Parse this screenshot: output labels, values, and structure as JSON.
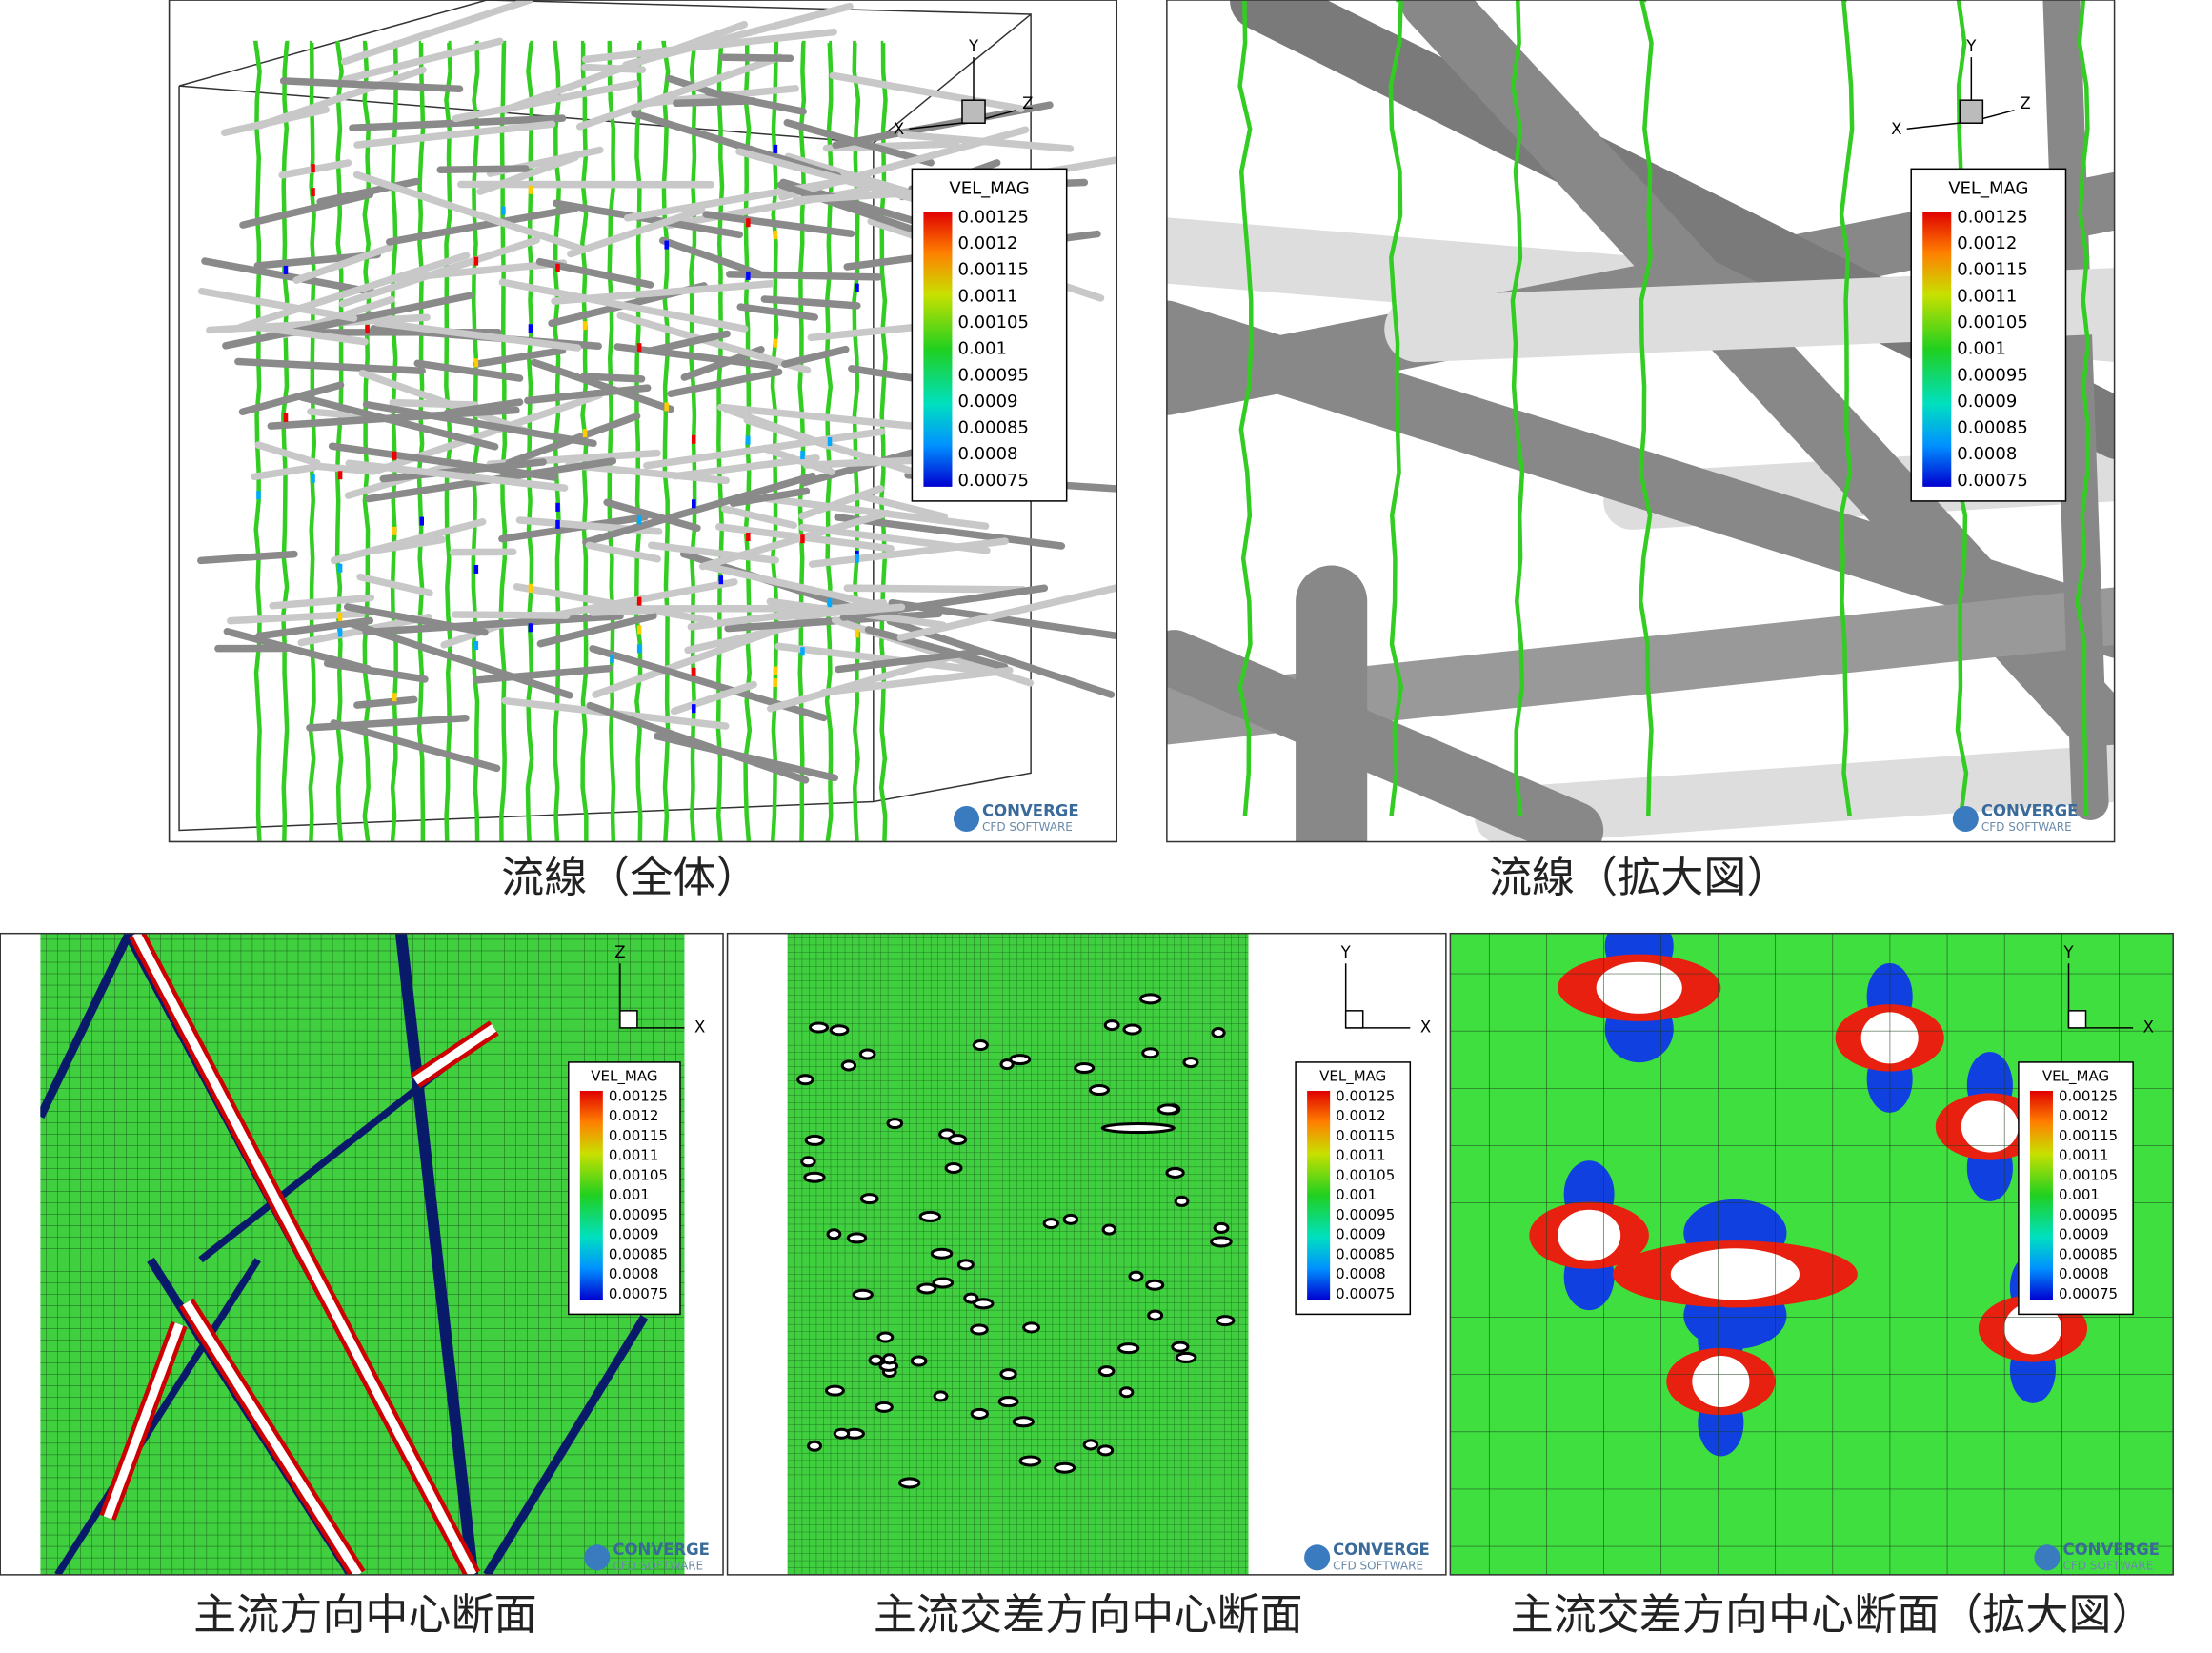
{
  "panels": [
    {
      "caption": "流線（全体）",
      "triad": [
        "Y",
        "X",
        "Z"
      ]
    },
    {
      "caption": "流線（拡大図）",
      "triad": [
        "Y",
        "X",
        "Z"
      ]
    },
    {
      "caption": "主流方向中心断面",
      "triad": [
        "Z",
        "X"
      ]
    },
    {
      "caption": "主流交差方向中心断面",
      "triad": [
        "Y",
        "X"
      ]
    },
    {
      "caption": "主流交差方向中心断面（拡大図）",
      "triad": [
        "Y",
        "X"
      ]
    }
  ],
  "legend": {
    "title": "VEL_MAG",
    "labels": [
      "0.00125",
      "0.0012",
      "0.00115",
      "0.0011",
      "0.00105",
      "0.001",
      "0.00095",
      "0.0009",
      "0.00085",
      "0.0008",
      "0.00075"
    ]
  },
  "logo": {
    "name": "CONVERGE",
    "sub": "CFD SOFTWARE"
  }
}
